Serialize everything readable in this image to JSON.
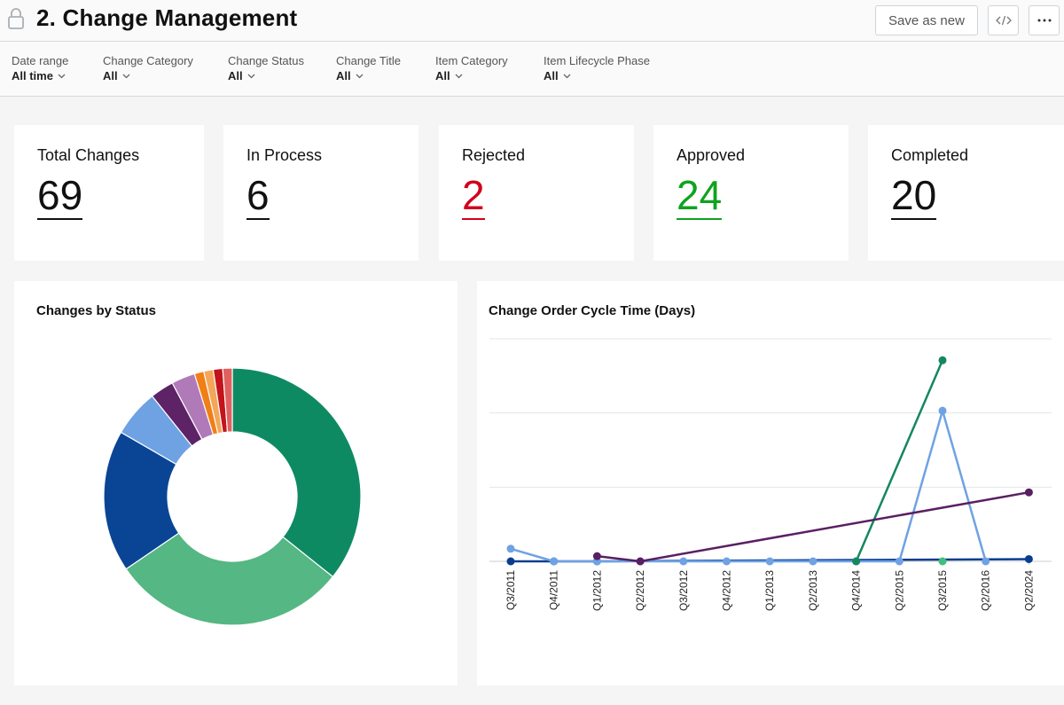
{
  "header": {
    "title": "2. Change Management",
    "save_label": "Save as new",
    "embed_icon": "code-icon",
    "more_label": "···"
  },
  "filters": [
    {
      "label": "Date range",
      "value": "All time"
    },
    {
      "label": "Change Category",
      "value": "All"
    },
    {
      "label": "Change Status",
      "value": "All"
    },
    {
      "label": "Change Title",
      "value": "All"
    },
    {
      "label": "Item Category",
      "value": "All"
    },
    {
      "label": "Item Lifecycle Phase",
      "value": "All"
    }
  ],
  "kpis": [
    {
      "label": "Total Changes",
      "value": "69"
    },
    {
      "label": "In Process",
      "value": "6"
    },
    {
      "label": "Rejected",
      "value": "2"
    },
    {
      "label": "Approved",
      "value": "24"
    },
    {
      "label": "Completed",
      "value": "20"
    }
  ],
  "colors": {
    "rejected": "#d0021b",
    "approved": "#0ea31e"
  },
  "chart_data": [
    {
      "type": "pie",
      "title": "Changes by Status",
      "donut": true,
      "slices": [
        {
          "value": 24,
          "color": "#0e8a63"
        },
        {
          "value": 20,
          "color": "#55b783"
        },
        {
          "value": 12,
          "color": "#0a4595"
        },
        {
          "value": 4,
          "color": "#6fa2e3"
        },
        {
          "value": 2,
          "color": "#5e2266"
        },
        {
          "value": 2,
          "color": "#b07ab9"
        },
        {
          "value": 0.8,
          "color": "#f07f16"
        },
        {
          "value": 0.8,
          "color": "#f3a75a"
        },
        {
          "value": 0.8,
          "color": "#c3141c"
        },
        {
          "value": 0.8,
          "color": "#e06060"
        }
      ]
    },
    {
      "type": "line",
      "title": "Change Order Cycle Time (Days)",
      "categories": [
        "Q3/2011",
        "Q4/2011",
        "Q1/2012",
        "Q2/2012",
        "Q3/2012",
        "Q4/2012",
        "Q1/2013",
        "Q2/2013",
        "Q4/2014",
        "Q2/2015",
        "Q3/2015",
        "Q2/2016",
        "Q2/2024"
      ],
      "ylim": [
        0,
        300
      ],
      "gridlines": [
        0,
        100,
        200,
        300
      ],
      "series": [
        {
          "color": "#0a3d8f",
          "values": [
            0,
            0,
            0,
            null,
            null,
            null,
            null,
            null,
            null,
            null,
            null,
            null,
            3
          ]
        },
        {
          "color": "#6fa2e3",
          "values": [
            17,
            0,
            0,
            0,
            0,
            0,
            0,
            0,
            0,
            0,
            203,
            0,
            null
          ]
        },
        {
          "color": "#14875e",
          "values": [
            null,
            null,
            null,
            null,
            null,
            null,
            null,
            null,
            0,
            null,
            271,
            null,
            null
          ]
        },
        {
          "color": "#5a1f63",
          "values": [
            null,
            null,
            7,
            0,
            null,
            null,
            null,
            null,
            null,
            null,
            null,
            null,
            93
          ]
        },
        {
          "color": "#3ec07a",
          "values": [
            null,
            null,
            null,
            null,
            null,
            null,
            null,
            null,
            null,
            null,
            0,
            null,
            null
          ]
        }
      ]
    }
  ]
}
